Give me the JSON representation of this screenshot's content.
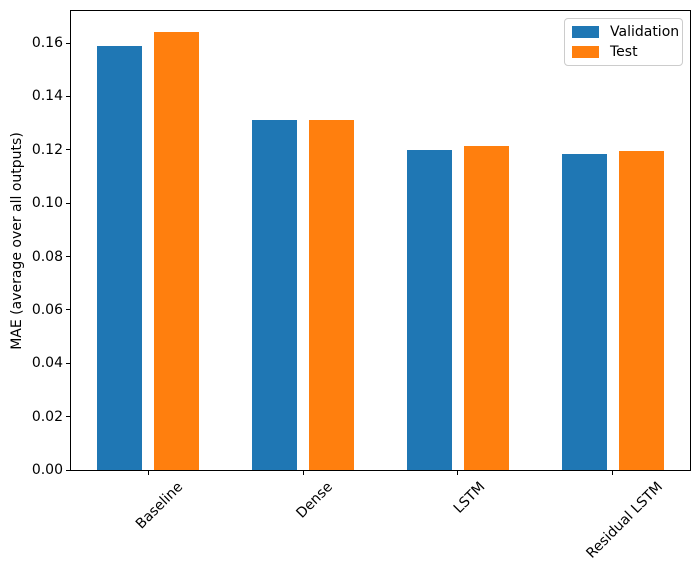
{
  "chart_data": {
    "type": "bar",
    "title": "",
    "categories": [
      "Baseline",
      "Dense",
      "LSTM",
      "Residual LSTM"
    ],
    "series": [
      {
        "name": "Validation",
        "color": "#1f77b4",
        "values": [
          0.159,
          0.131,
          0.12,
          0.1185
        ]
      },
      {
        "name": "Test",
        "color": "#ff7f0e",
        "values": [
          0.164,
          0.131,
          0.1215,
          0.1195
        ]
      }
    ],
    "xlabel": "",
    "ylabel": "MAE (average over all outputs)",
    "ylim": [
      0,
      0.172
    ],
    "ytick_labels": [
      "0.00",
      "0.02",
      "0.04",
      "0.06",
      "0.08",
      "0.10",
      "0.12",
      "0.14",
      "0.16"
    ],
    "x_tick_rotation_deg": 45,
    "grid": false,
    "legend": {
      "position": "upper right",
      "border_color": "#cccccc"
    },
    "axis_color": "#000000",
    "background": "#ffffff"
  }
}
